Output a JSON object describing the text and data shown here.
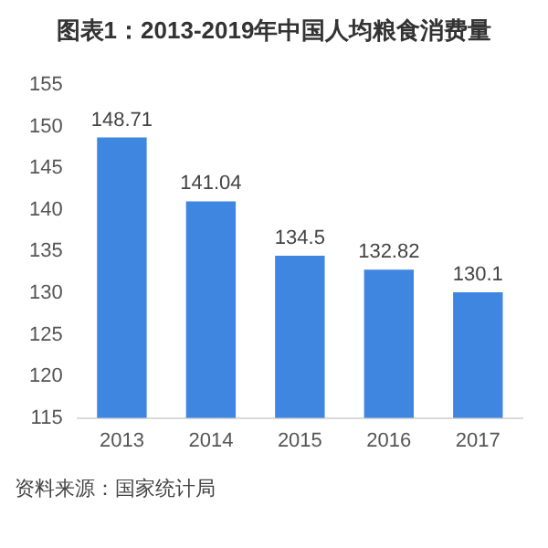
{
  "chart_data": {
    "type": "bar",
    "title": "图表1：2013-2019年中国人均粮食消费量",
    "categories": [
      "2013",
      "2014",
      "2015",
      "2016",
      "2017"
    ],
    "values": [
      148.71,
      141.04,
      134.5,
      132.82,
      130.1
    ],
    "color": "#3f86e0",
    "ylim": [
      115,
      155
    ],
    "yticks": [
      115,
      120,
      125,
      130,
      135,
      140,
      145,
      150,
      155
    ],
    "grid": false,
    "legend": false,
    "data_labels": true,
    "annotations": [
      "资料来源：国家统计局"
    ]
  }
}
